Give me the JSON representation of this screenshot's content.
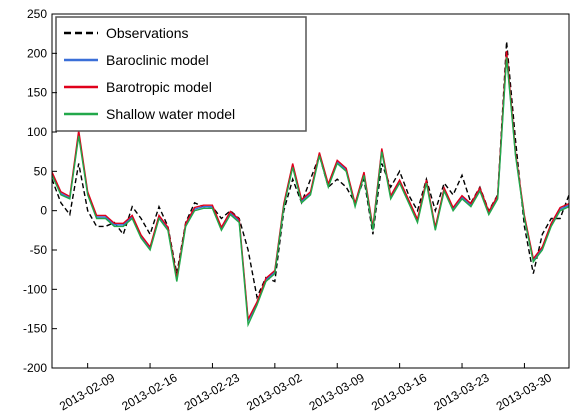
{
  "chart_data": {
    "type": "line",
    "x": [
      "2013-02-05",
      "2013-02-06",
      "2013-02-07",
      "2013-02-08",
      "2013-02-09",
      "2013-02-10",
      "2013-02-11",
      "2013-02-12",
      "2013-02-13",
      "2013-02-14",
      "2013-02-15",
      "2013-02-16",
      "2013-02-17",
      "2013-02-18",
      "2013-02-19",
      "2013-02-20",
      "2013-02-21",
      "2013-02-22",
      "2013-02-23",
      "2013-02-24",
      "2013-02-25",
      "2013-02-26",
      "2013-02-27",
      "2013-02-28",
      "2013-03-01",
      "2013-03-02",
      "2013-03-03",
      "2013-03-04",
      "2013-03-05",
      "2013-03-06",
      "2013-03-07",
      "2013-03-08",
      "2013-03-09",
      "2013-03-10",
      "2013-03-11",
      "2013-03-12",
      "2013-03-13",
      "2013-03-14",
      "2013-03-15",
      "2013-03-16",
      "2013-03-17",
      "2013-03-18",
      "2013-03-19",
      "2013-03-20",
      "2013-03-21",
      "2013-03-22",
      "2013-03-23",
      "2013-03-24",
      "2013-03-25",
      "2013-03-26",
      "2013-03-27",
      "2013-03-28",
      "2013-03-29",
      "2013-03-30",
      "2013-03-31",
      "2013-04-01",
      "2013-04-02",
      "2013-04-03",
      "2013-04-04"
    ],
    "series": [
      {
        "name": "Observations",
        "color": "#000000",
        "dashed": true,
        "values": [
          40,
          10,
          -5,
          60,
          0,
          -20,
          -20,
          -15,
          -30,
          5,
          -10,
          -30,
          5,
          -20,
          -80,
          -15,
          10,
          5,
          5,
          -10,
          0,
          -10,
          -50,
          -110,
          -85,
          -90,
          0,
          40,
          10,
          40,
          70,
          30,
          40,
          30,
          10,
          40,
          -30,
          60,
          30,
          50,
          20,
          0,
          40,
          0,
          35,
          20,
          45,
          10,
          30,
          0,
          20,
          215,
          90,
          -20,
          -80,
          -30,
          -10,
          -10,
          20
        ]
      },
      {
        "name": "Baroclinic model",
        "color": "#3a6fd8",
        "values": [
          47,
          22,
          16,
          98,
          22,
          -8,
          -8,
          -18,
          -18,
          -8,
          -33,
          -48,
          -8,
          -23,
          -88,
          -18,
          2,
          5,
          5,
          -23,
          -3,
          -13,
          -140,
          -118,
          -88,
          -78,
          7,
          58,
          12,
          22,
          72,
          32,
          62,
          52,
          7,
          47,
          -23,
          77,
          17,
          37,
          12,
          -13,
          37,
          -23,
          27,
          2,
          17,
          7,
          27,
          -3,
          17,
          198,
          72,
          -8,
          -63,
          -48,
          -18,
          2,
          7
        ]
      },
      {
        "name": "Barotropic model",
        "color": "#e0001b",
        "values": [
          49,
          24,
          18,
          102,
          24,
          -6,
          -6,
          -16,
          -16,
          -6,
          -31,
          -46,
          -6,
          -21,
          -86,
          -16,
          4,
          7,
          7,
          -21,
          -1,
          -11,
          -138,
          -116,
          -86,
          -76,
          9,
          60,
          14,
          24,
          74,
          34,
          64,
          54,
          9,
          49,
          -21,
          79,
          19,
          39,
          14,
          -11,
          39,
          -21,
          29,
          4,
          19,
          9,
          29,
          -1,
          19,
          203,
          74,
          -6,
          -61,
          -46,
          -16,
          4,
          9
        ]
      },
      {
        "name": "Shallow water model",
        "color": "#22a84a",
        "values": [
          45,
          20,
          15,
          95,
          20,
          -10,
          -10,
          -20,
          -20,
          -10,
          -35,
          -50,
          -10,
          -25,
          -90,
          -20,
          0,
          3,
          3,
          -25,
          -5,
          -15,
          -145,
          -120,
          -90,
          -80,
          5,
          55,
          10,
          20,
          70,
          30,
          60,
          50,
          5,
          45,
          -25,
          75,
          15,
          35,
          10,
          -15,
          35,
          -25,
          25,
          0,
          15,
          5,
          25,
          -5,
          15,
          195,
          70,
          -10,
          -65,
          -50,
          -20,
          0,
          5
        ]
      }
    ],
    "xlim": [
      "2013-02-05",
      "2013-04-04"
    ],
    "xticks": [
      "2013-02-09",
      "2013-02-16",
      "2013-02-23",
      "2013-03-02",
      "2013-03-09",
      "2013-03-16",
      "2013-03-23",
      "2013-03-30"
    ],
    "ylim": [
      -200,
      250
    ],
    "yticks": [
      -200,
      -150,
      -100,
      -50,
      0,
      50,
      100,
      150,
      200,
      250
    ],
    "legend": "upper left"
  }
}
